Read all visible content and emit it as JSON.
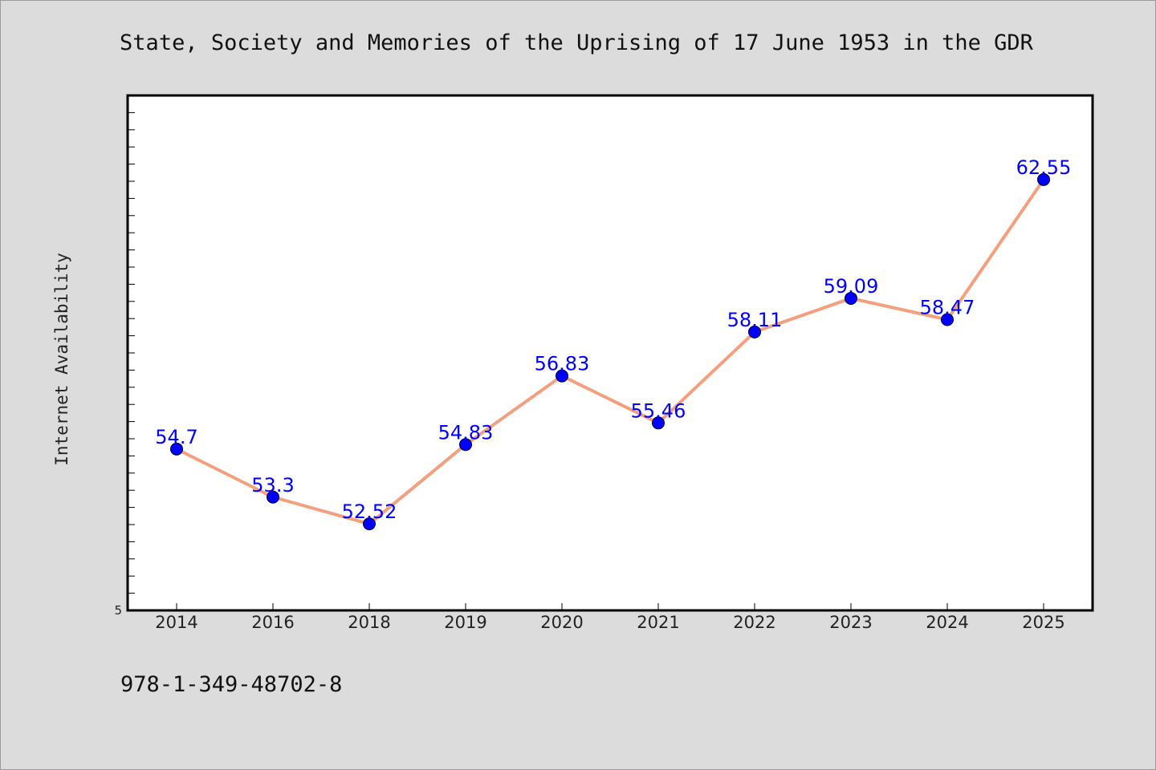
{
  "chart_data": {
    "type": "line",
    "title": "State, Society and Memories of the Uprising of 17 June 1953 in the GDR",
    "xlabel": "",
    "ylabel": "Internet Availability",
    "categories": [
      "2014",
      "2016",
      "2018",
      "2019",
      "2020",
      "2021",
      "2022",
      "2023",
      "2024",
      "2025"
    ],
    "series": [
      {
        "values": [
          54.7,
          53.3,
          52.52,
          54.83,
          56.83,
          55.46,
          58.11,
          59.09,
          58.47,
          62.55
        ],
        "labels": [
          "54.7",
          "53.3",
          "52.52",
          "54.83",
          "56.83",
          "55.46",
          "58.11",
          "59.09",
          "58.47",
          "62.55"
        ]
      }
    ],
    "ylim": [
      50,
      65
    ],
    "ytick_labels": [
      {
        "value": 50,
        "label": "5"
      }
    ],
    "grid": false,
    "legend": "none",
    "line_color": "#f4a07e",
    "marker_color": "#0000ff",
    "label_color": "#0000ff"
  },
  "footer": {
    "isbn": "978-1-349-48702-8"
  }
}
